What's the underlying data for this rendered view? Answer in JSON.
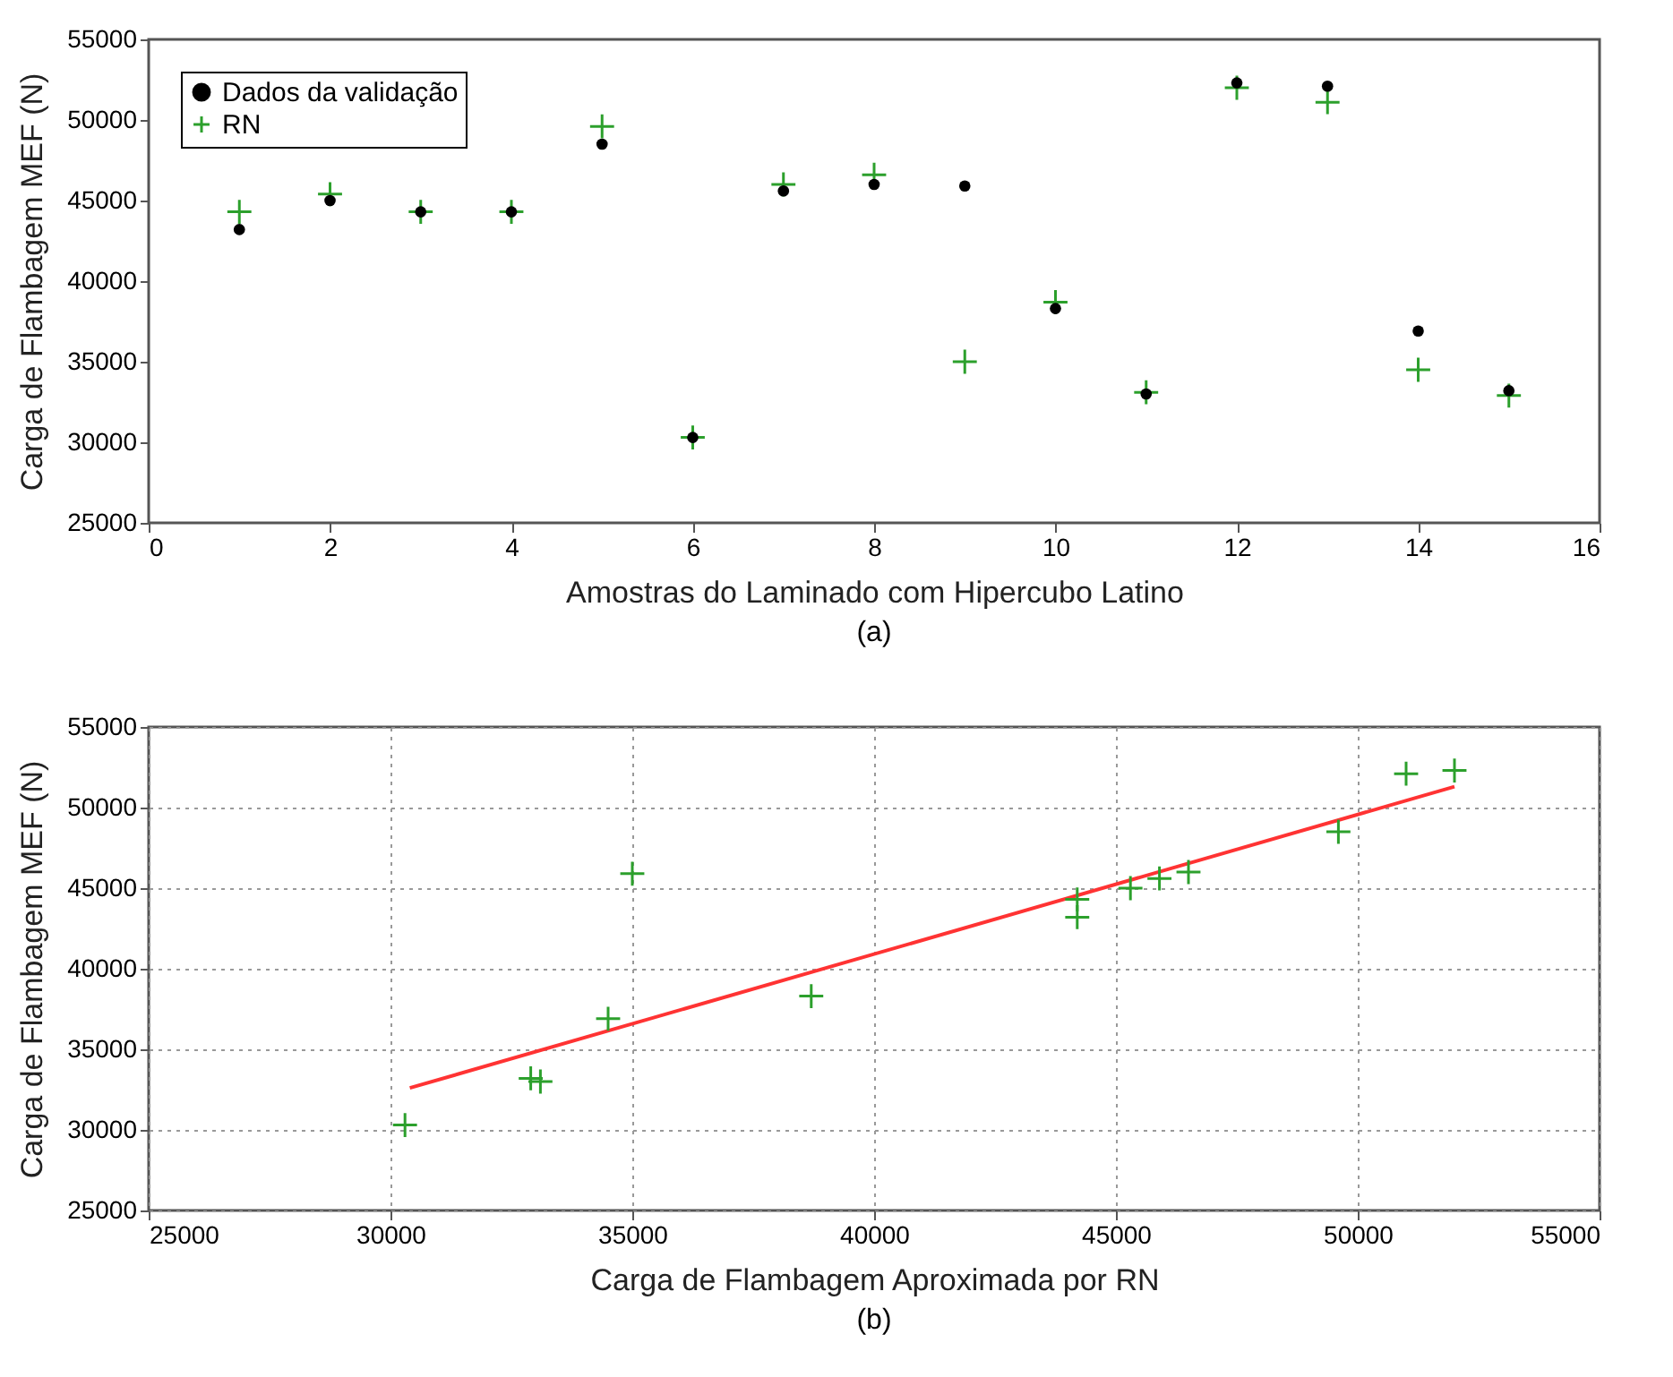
{
  "chart_data": [
    {
      "type": "scatter",
      "xlabel": "Amostras do Laminado com Hipercubo Latino",
      "ylabel": "Carga de Flambagem MEF (N)",
      "annotations": [
        "(a)"
      ],
      "x": [
        1,
        2,
        3,
        4,
        5,
        6,
        7,
        8,
        9,
        10,
        11,
        12,
        13,
        14,
        15
      ],
      "xlim": [
        0,
        16
      ],
      "xticks": [
        0,
        2,
        4,
        6,
        8,
        10,
        12,
        14,
        16
      ],
      "ylim": [
        25000,
        55000
      ],
      "yticks": [
        25000,
        30000,
        35000,
        40000,
        45000,
        50000,
        55000
      ],
      "grid": false,
      "legend": "top left",
      "series": [
        {
          "name": "Dados da validação",
          "color": "#000000",
          "marker": "circle",
          "values": [
            43200,
            45000,
            44300,
            44300,
            48500,
            30300,
            45600,
            46000,
            45900,
            38300,
            33000,
            52300,
            52100,
            36900,
            33200
          ]
        },
        {
          "name": "RN",
          "color": "#2ca02c",
          "marker": "cross",
          "values": [
            44300,
            45400,
            44300,
            44300,
            49600,
            30300,
            46000,
            46600,
            35000,
            38700,
            33100,
            52000,
            51100,
            34500,
            32900
          ]
        }
      ]
    },
    {
      "type": "scatter",
      "xlabel": "Carga de Flambagem Aproximada por RN",
      "ylabel": "Carga de Flambagem MEF (N)",
      "annotations": [
        "(b)"
      ],
      "xlim": [
        25000,
        55000
      ],
      "xticks": [
        25000,
        30000,
        35000,
        40000,
        45000,
        50000,
        55000
      ],
      "ylim": [
        25000,
        55000
      ],
      "yticks": [
        25000,
        30000,
        35000,
        40000,
        45000,
        50000,
        55000
      ],
      "grid": true,
      "series": [
        {
          "color": "#2ca02c",
          "marker": "cross",
          "x": [
            30300,
            32900,
            33100,
            34500,
            35000,
            38700,
            44200,
            44200,
            45300,
            45900,
            46500,
            49600,
            51000,
            52000
          ],
          "values": [
            30300,
            33200,
            33000,
            36900,
            45900,
            38300,
            44300,
            43200,
            45000,
            45600,
            46000,
            48500,
            52100,
            52300
          ]
        },
        {
          "type": "line",
          "color": "#ff3333",
          "x": [
            30400,
            52000
          ],
          "values": [
            32600,
            51300
          ]
        }
      ]
    }
  ]
}
